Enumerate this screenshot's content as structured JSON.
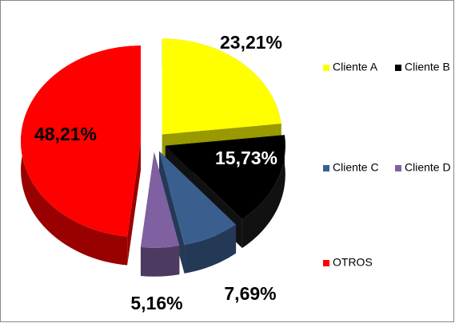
{
  "chart_data": {
    "type": "pie",
    "categories": [
      "Cliente A",
      "Cliente B",
      "Cliente C",
      "Cliente D",
      "OTROS"
    ],
    "values": [
      23.21,
      15.73,
      7.69,
      5.16,
      48.21
    ],
    "value_labels": [
      "23,21%",
      "15,73%",
      "7,69%",
      "5,16%",
      "48,21%"
    ],
    "colors": [
      "#ffff00",
      "#000000",
      "#3a5f8f",
      "#7f60a0",
      "#ff0000"
    ]
  }
}
